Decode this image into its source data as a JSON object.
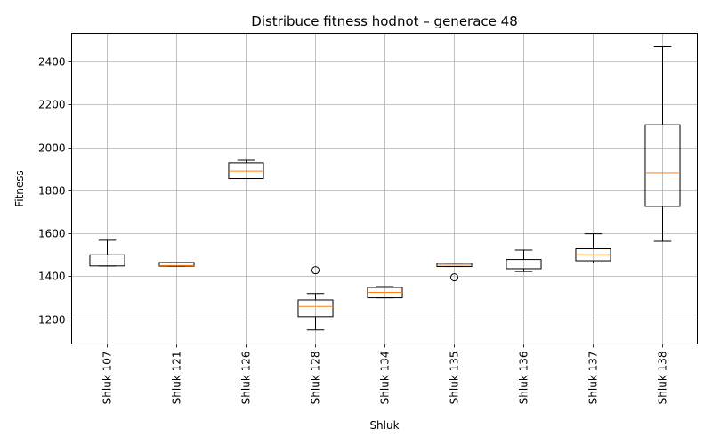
{
  "chart_data": {
    "type": "box",
    "title": "Distribuce fitness hodnot – generace 48",
    "xlabel": "Shluk",
    "ylabel": "Fitness",
    "ylim": [
      1085,
      2530
    ],
    "yticks": [
      1200,
      1400,
      1600,
      1800,
      2000,
      2200,
      2400
    ],
    "grid": true,
    "categories": [
      "Shluk 107",
      "Shluk 121",
      "Shluk 126",
      "Shluk 128",
      "Shluk 134",
      "Shluk 135",
      "Shluk 136",
      "Shluk 137",
      "Shluk 138"
    ],
    "boxes": [
      {
        "whisker_low": 1448,
        "q1": 1448,
        "median": 1462,
        "q3": 1500,
        "whisker_high": 1568,
        "outliers": []
      },
      {
        "whisker_low": 1447,
        "q1": 1447,
        "median": 1450,
        "q3": 1464,
        "whisker_high": 1464,
        "outliers": []
      },
      {
        "whisker_low": 1855,
        "q1": 1855,
        "median": 1890,
        "q3": 1928,
        "whisker_high": 1940,
        "outliers": []
      },
      {
        "whisker_low": 1150,
        "q1": 1212,
        "median": 1260,
        "q3": 1290,
        "whisker_high": 1320,
        "outliers": [
          1428
        ]
      },
      {
        "whisker_low": 1300,
        "q1": 1300,
        "median": 1325,
        "q3": 1348,
        "whisker_high": 1352,
        "outliers": []
      },
      {
        "whisker_low": 1445,
        "q1": 1445,
        "median": 1452,
        "q3": 1460,
        "whisker_high": 1460,
        "outliers": [
          1395
        ]
      },
      {
        "whisker_low": 1422,
        "q1": 1435,
        "median": 1462,
        "q3": 1478,
        "whisker_high": 1522,
        "outliers": []
      },
      {
        "whisker_low": 1462,
        "q1": 1472,
        "median": 1500,
        "q3": 1528,
        "whisker_high": 1598,
        "outliers": []
      },
      {
        "whisker_low": 1563,
        "q1": 1725,
        "median": 1882,
        "q3": 2105,
        "whisker_high": 2468,
        "outliers": []
      }
    ],
    "colors": {
      "box": "#000000",
      "median": "#ff7f0e",
      "grid": "#b0b0b0"
    }
  }
}
